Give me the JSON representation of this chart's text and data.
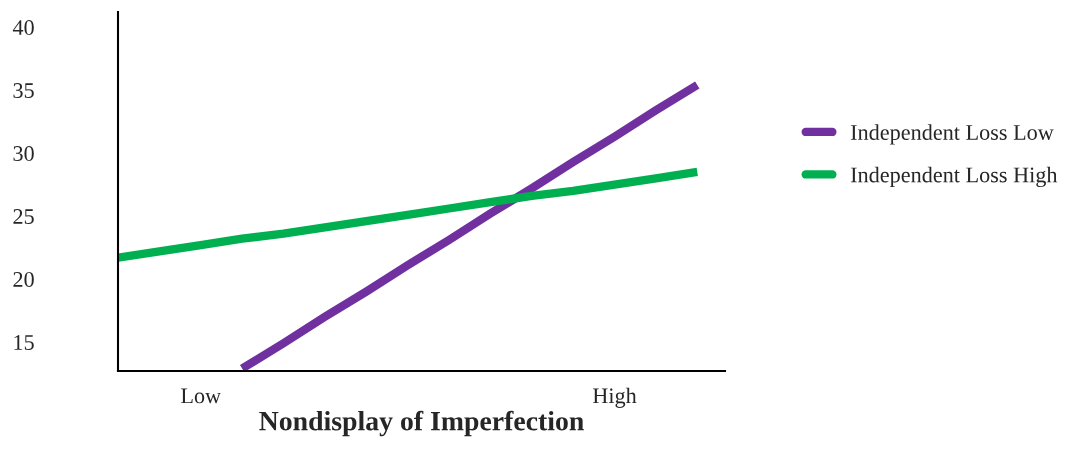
{
  "chart_data": {
    "type": "line",
    "xlabel": "Nondisplay of Imperfection",
    "categories": [
      null,
      null,
      "Low",
      null,
      null,
      null,
      null,
      null,
      null,
      null,
      null,
      null,
      "High",
      null,
      null
    ],
    "ylim": [
      12.7,
      41.2
    ],
    "yticks": [
      15,
      20,
      25,
      30,
      35,
      40
    ],
    "series": [
      {
        "name": "Independent Loss Low",
        "color": "#7030a0",
        "values": [
          null,
          null,
          null,
          12.9,
          14.9,
          17.0,
          19.0,
          21.1,
          23.1,
          25.2,
          27.2,
          29.3,
          31.3,
          33.4,
          35.4
        ]
      },
      {
        "name": "Independent Loss High",
        "color": "#00b050",
        "values": [
          21.7,
          22.2,
          22.7,
          23.2,
          23.6,
          24.1,
          24.6,
          25.1,
          25.6,
          26.1,
          26.6,
          27.0,
          27.5,
          28.0,
          28.5
        ]
      }
    ],
    "legend": "right",
    "grid": false
  }
}
